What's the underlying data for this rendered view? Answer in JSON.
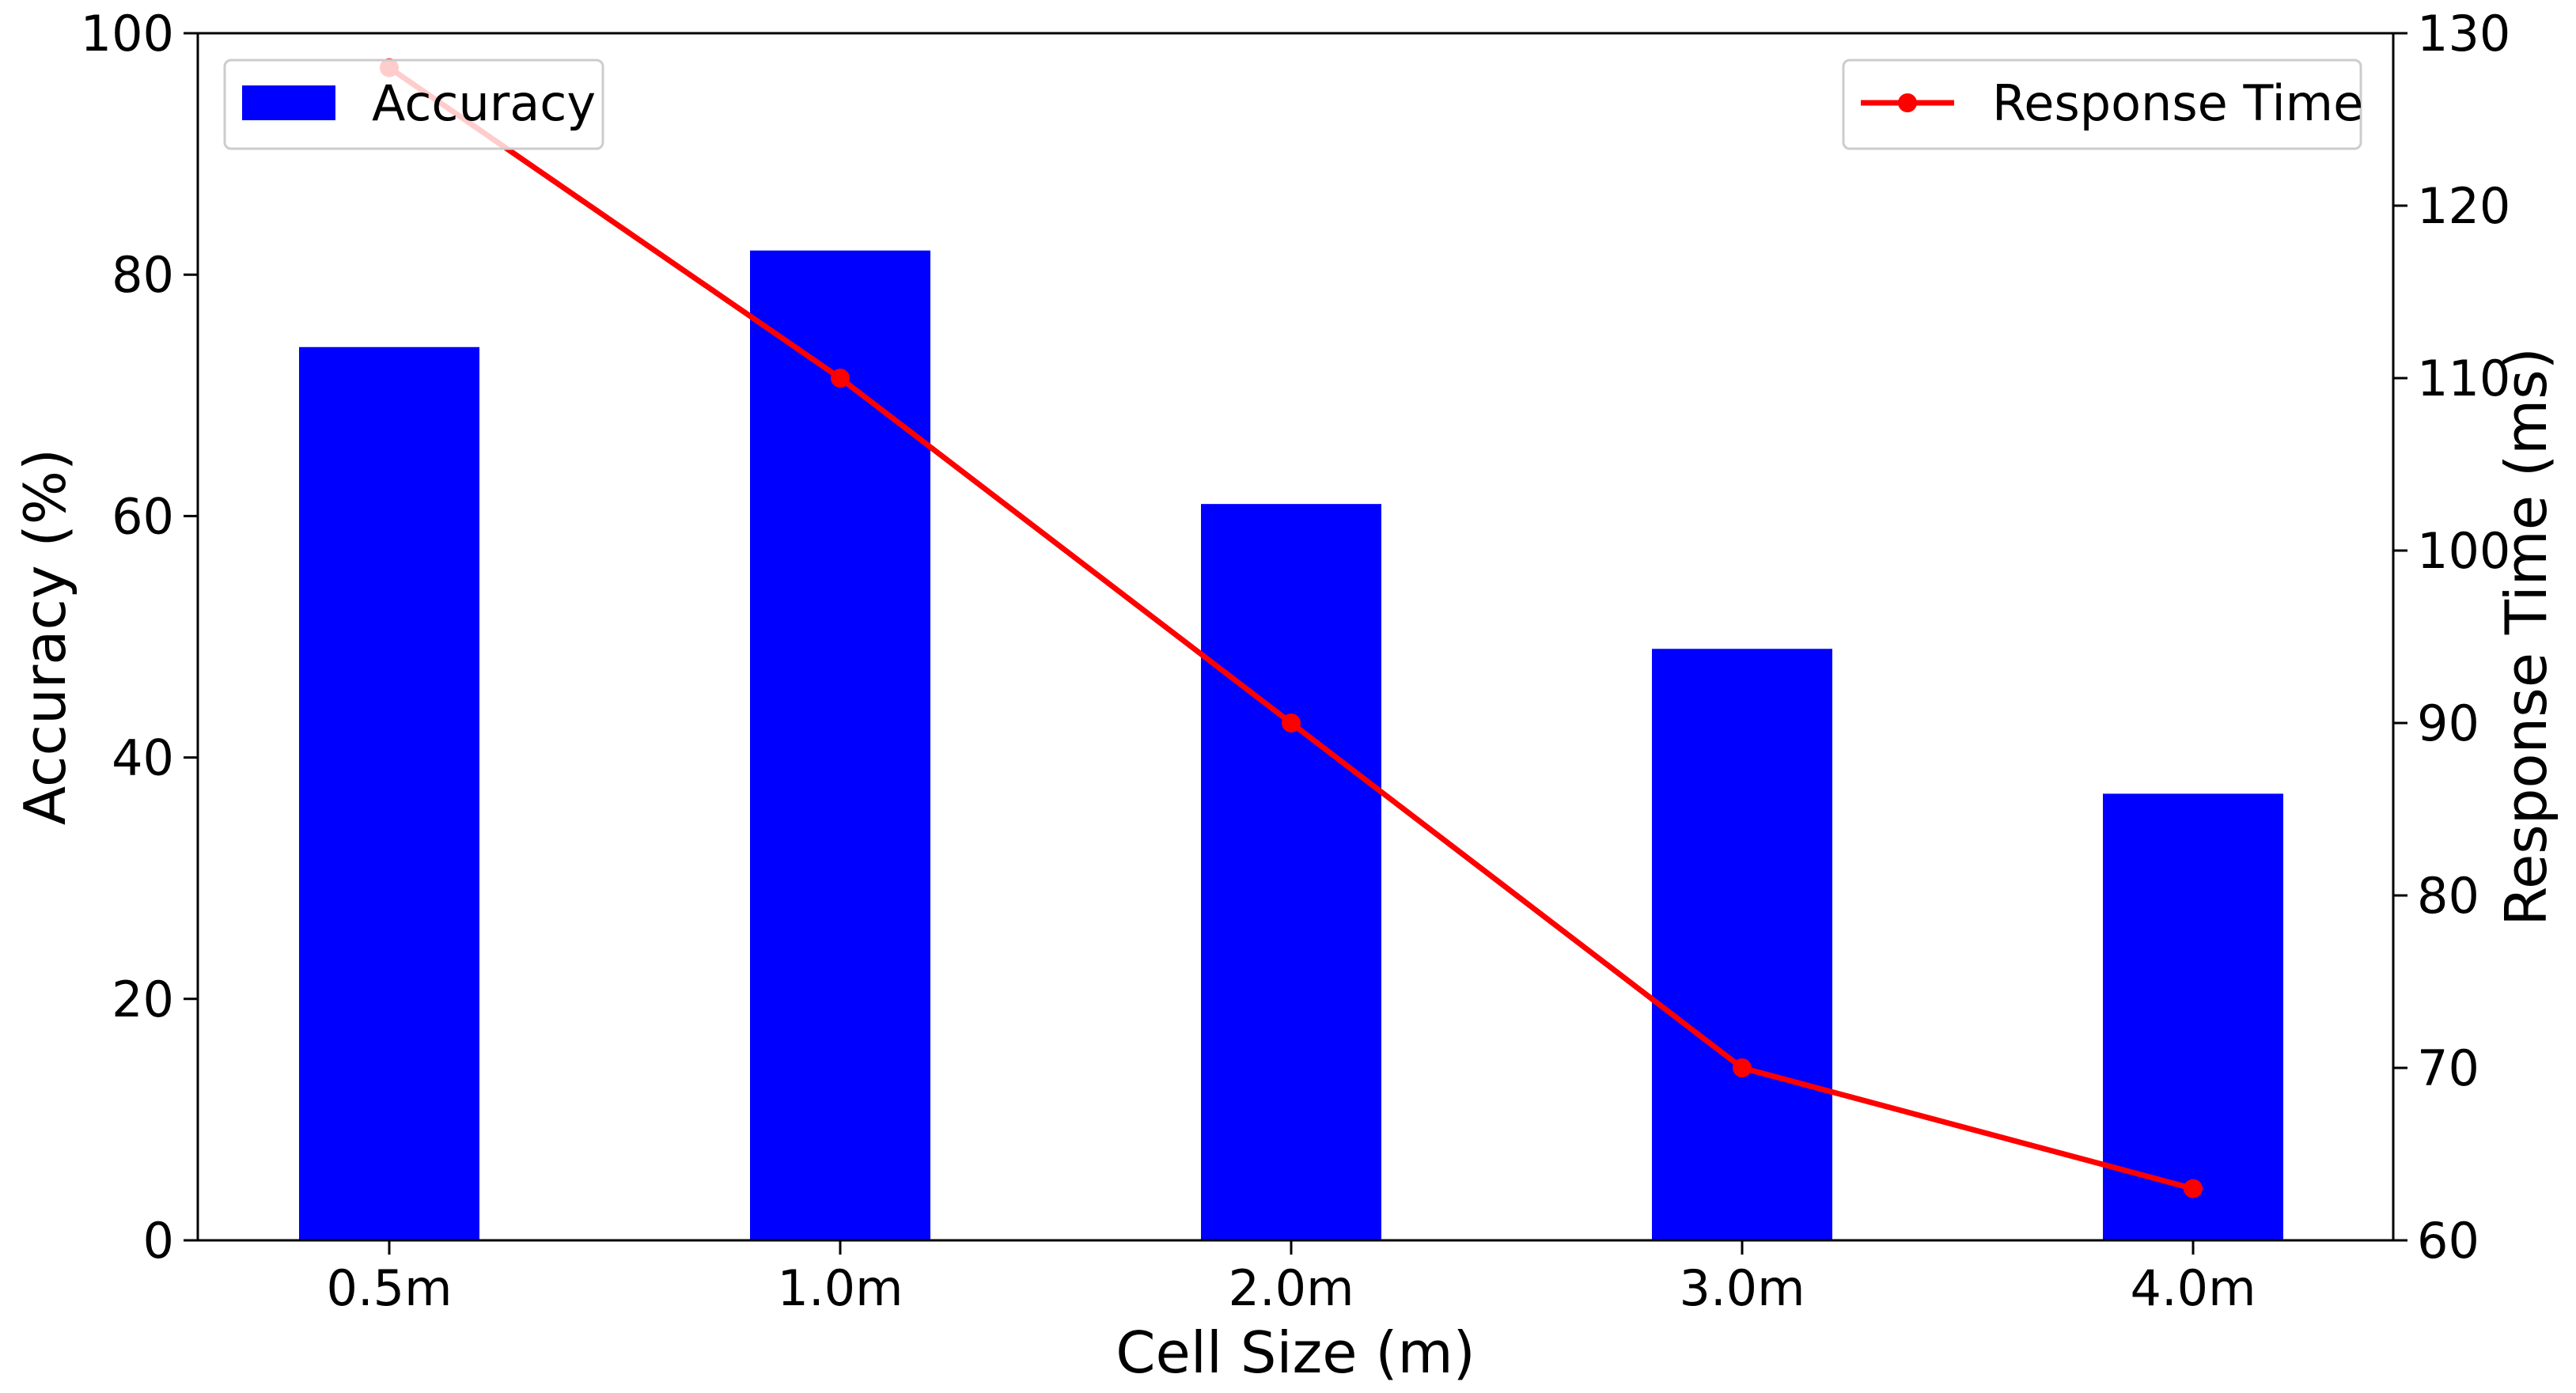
{
  "chart_data": {
    "type": "bar",
    "categories": [
      "0.5m",
      "1.0m",
      "2.0m",
      "3.0m",
      "4.0m"
    ],
    "xlabel": "Cell Size (m)",
    "ylabel": "Accuracy (%)",
    "y2label": "Response Time (ms)",
    "ylim": [
      0,
      100
    ],
    "y2lim": [
      60,
      130
    ],
    "yticks": [
      0,
      20,
      40,
      60,
      80,
      100
    ],
    "y2ticks": [
      60,
      70,
      80,
      90,
      100,
      110,
      120,
      130
    ],
    "series": [
      {
        "name": "Accuracy",
        "type": "bar",
        "axis": "left",
        "color": "#0000ff",
        "values": [
          74,
          82,
          61,
          49,
          37
        ]
      },
      {
        "name": "Response Time",
        "type": "line",
        "axis": "right",
        "color": "#ff0000",
        "marker": "circle",
        "values": [
          128,
          110,
          90,
          70,
          63
        ]
      }
    ],
    "legend": {
      "bar": "top-left",
      "line": "top-right"
    },
    "grid": false
  }
}
